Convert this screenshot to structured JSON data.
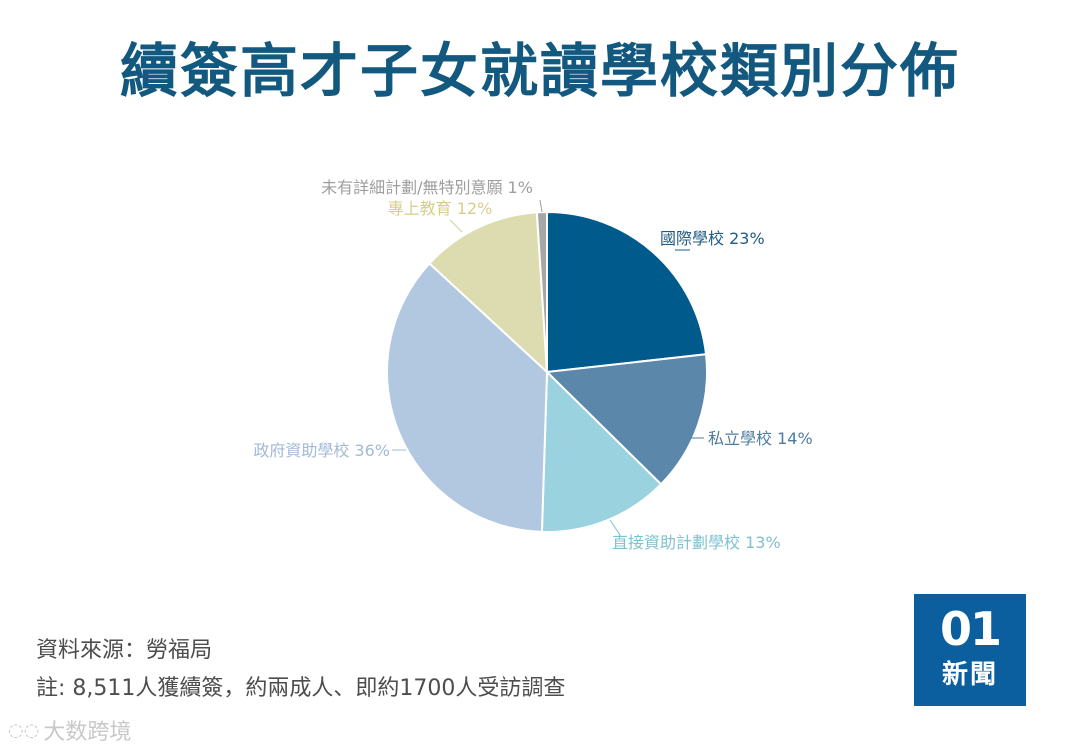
{
  "title": "續簽高才子女就讀學校類別分佈",
  "chart_data": {
    "type": "pie",
    "slices": [
      {
        "label": "國際學校 23%",
        "value": 23,
        "color": "#005a8c"
      },
      {
        "label": "私立學校 14%",
        "value": 14,
        "color": "#5a87aa"
      },
      {
        "label": "直接資助計劃學校 13%",
        "value": 13,
        "color": "#9ad2df"
      },
      {
        "label": "政府資助學校 36%",
        "value": 36,
        "color": "#b1c8e0"
      },
      {
        "label": "專上教育 12%",
        "value": 12,
        "color": "#dcdcb0"
      },
      {
        "label": "未有詳細計劃/無特別意願 1%",
        "value": 1,
        "color": "#a7a7a7"
      }
    ],
    "label_colors": [
      "#1f5b82",
      "#4e7ca1",
      "#7fc1d0",
      "#a2bad6",
      "#d6ce8f",
      "#9e9e9e"
    ]
  },
  "footer": {
    "source": "資料來源：勞福局",
    "note": "註: 8,511人獲續簽，約兩成人、即約1700人受訪調查"
  },
  "logo": {
    "mark": "01",
    "word": "新聞"
  },
  "watermark": {
    "text": "大数跨境",
    "icon": "chat-bubble-icon"
  }
}
